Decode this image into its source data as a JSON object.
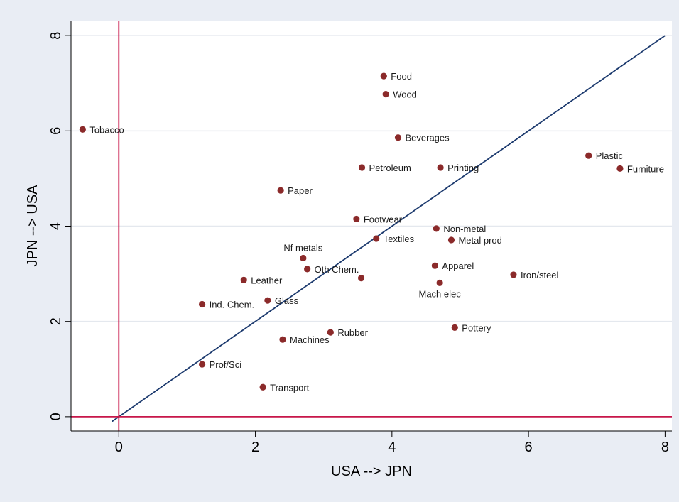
{
  "chart_data": {
    "type": "scatter",
    "title": "",
    "xlabel": "USA --> JPN",
    "ylabel": "JPN --> USA",
    "xlim": [
      -0.7,
      8.1
    ],
    "ylim": [
      -0.3,
      8.3
    ],
    "xticks": [
      0,
      2,
      4,
      6,
      8
    ],
    "yticks": [
      0,
      2,
      4,
      6,
      8
    ],
    "grid": true,
    "legend": "none",
    "colors": {
      "point": "#8b2a2a",
      "diagonal": "#1c3a6e",
      "zero_lines": "#c8174a",
      "grid": "#e4e8ee",
      "plot_bg": "#ffffff",
      "page_bg": "#e9edf4"
    },
    "reference_lines": [
      {
        "type": "diagonal",
        "from": [
          -0.1,
          -0.1
        ],
        "to": [
          8,
          8
        ]
      },
      {
        "type": "vertical",
        "x": 0
      },
      {
        "type": "horizontal",
        "y": 0
      }
    ],
    "points": [
      {
        "label": "Food",
        "x": 3.88,
        "y": 7.15,
        "label_pos": "right"
      },
      {
        "label": "Wood",
        "x": 3.91,
        "y": 6.77,
        "label_pos": "right"
      },
      {
        "label": "Tobacco",
        "x": -0.53,
        "y": 6.03,
        "label_pos": "right"
      },
      {
        "label": "Beverages",
        "x": 4.09,
        "y": 5.86,
        "label_pos": "right"
      },
      {
        "label": "Plastic",
        "x": 6.88,
        "y": 5.48,
        "label_pos": "right"
      },
      {
        "label": "Petroleum",
        "x": 3.56,
        "y": 5.23,
        "label_pos": "right"
      },
      {
        "label": "Printing",
        "x": 4.71,
        "y": 5.23,
        "label_pos": "right"
      },
      {
        "label": "Furniture",
        "x": 7.34,
        "y": 5.21,
        "label_pos": "right"
      },
      {
        "label": "Paper",
        "x": 2.37,
        "y": 4.75,
        "label_pos": "right"
      },
      {
        "label": "Footwear",
        "x": 3.48,
        "y": 4.15,
        "label_pos": "right"
      },
      {
        "label": "Non-metal",
        "x": 4.65,
        "y": 3.95,
        "label_pos": "right"
      },
      {
        "label": "Textiles",
        "x": 3.77,
        "y": 3.74,
        "label_pos": "right"
      },
      {
        "label": "Metal prod",
        "x": 4.87,
        "y": 3.71,
        "label_pos": "right"
      },
      {
        "label": "Nf metals",
        "x": 2.7,
        "y": 3.33,
        "label_pos": "above"
      },
      {
        "label": "Apparel",
        "x": 4.63,
        "y": 3.17,
        "label_pos": "right"
      },
      {
        "label": "Oth Chem.",
        "x": 2.76,
        "y": 3.1,
        "label_pos": "right"
      },
      {
        "label": "Iron/steel",
        "x": 5.78,
        "y": 2.98,
        "label_pos": "right"
      },
      {
        "label": "",
        "x": 3.55,
        "y": 2.91,
        "label_pos": "right"
      },
      {
        "label": "Leather",
        "x": 1.83,
        "y": 2.87,
        "label_pos": "right"
      },
      {
        "label": "Mach elec",
        "x": 4.7,
        "y": 2.81,
        "label_pos": "below"
      },
      {
        "label": "Glass",
        "x": 2.18,
        "y": 2.44,
        "label_pos": "right"
      },
      {
        "label": "Ind. Chem.",
        "x": 1.22,
        "y": 2.36,
        "label_pos": "right"
      },
      {
        "label": "Pottery",
        "x": 4.92,
        "y": 1.87,
        "label_pos": "right"
      },
      {
        "label": "Rubber",
        "x": 3.1,
        "y": 1.77,
        "label_pos": "right"
      },
      {
        "label": "Machines",
        "x": 2.4,
        "y": 1.62,
        "label_pos": "right"
      },
      {
        "label": "Prof/Sci",
        "x": 1.22,
        "y": 1.1,
        "label_pos": "right"
      },
      {
        "label": "Transport",
        "x": 2.11,
        "y": 0.62,
        "label_pos": "right"
      }
    ]
  }
}
